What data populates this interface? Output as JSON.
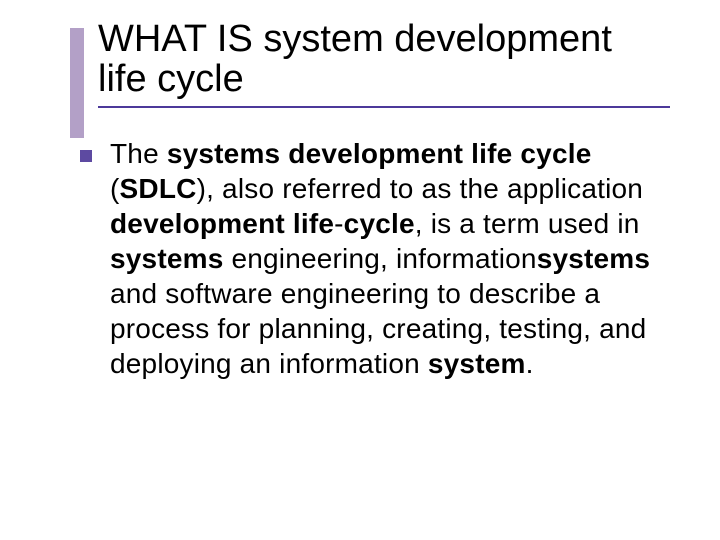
{
  "slide": {
    "title": "WHAT IS system development life cycle",
    "title_fontsize": 38,
    "title_color": "#000000",
    "accent_bar_color": "#b3a0c7",
    "underline_color": "#4c399a",
    "bullet_color": "#5d4aa1",
    "body_fontsize": 28,
    "body_lineheight": 1.25,
    "body_segments": [
      {
        "text": "The ",
        "bold": false
      },
      {
        "text": "systems development life cycle",
        "bold": true
      },
      {
        "text": " (",
        "bold": false
      },
      {
        "text": "SDLC",
        "bold": true
      },
      {
        "text": "), also referred to as the application ",
        "bold": false
      },
      {
        "text": "development life",
        "bold": true
      },
      {
        "text": "-",
        "bold": false
      },
      {
        "text": "cycle",
        "bold": true
      },
      {
        "text": ", is a term used in ",
        "bold": false
      },
      {
        "text": "systems",
        "bold": true
      },
      {
        "text": " engineering, information",
        "bold": false
      },
      {
        "text": "systems",
        "bold": true
      },
      {
        "text": " and software engineering to describe a process for planning, creating, testing, and deploying an information ",
        "bold": false
      },
      {
        "text": "system",
        "bold": true
      },
      {
        "text": ".",
        "bold": false
      }
    ],
    "background_color": "#ffffff"
  }
}
